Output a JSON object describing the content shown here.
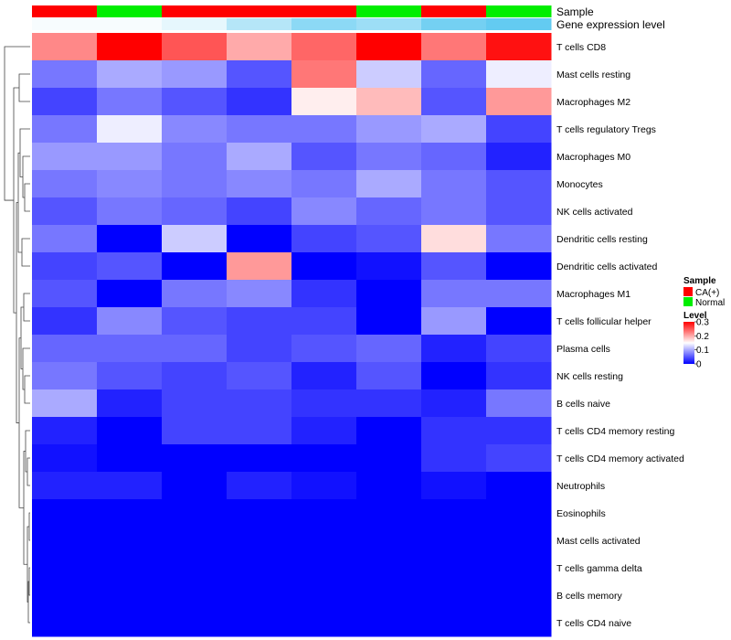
{
  "chart_data": {
    "type": "heatmap",
    "title": "",
    "annotation_rows": [
      "Sample",
      "Gene expression level"
    ],
    "columns": [
      {
        "sample": "CA(+)",
        "expression_level": 0.05
      },
      {
        "sample": "Normal",
        "expression_level": 0.05
      },
      {
        "sample": "CA(+)",
        "expression_level": 0.15
      },
      {
        "sample": "CA(+)",
        "expression_level": 0.45
      },
      {
        "sample": "CA(+)",
        "expression_level": 0.7
      },
      {
        "sample": "Normal",
        "expression_level": 0.6
      },
      {
        "sample": "CA(+)",
        "expression_level": 0.85
      },
      {
        "sample": "Normal",
        "expression_level": 0.95
      }
    ],
    "rows": [
      "T cells CD8",
      "Mast cells resting",
      "Macrophages M2",
      "T cells regulatory  Tregs",
      "Macrophages M0",
      "Monocytes",
      "NK cells activated",
      "Dendritic cells resting",
      "Dendritic cells activated",
      "Macrophages M1",
      "T cells follicular helper",
      "Plasma cells",
      "NK cells resting",
      "B cells naive",
      "T cells CD4 memory resting",
      "T cells CD4 memory activated",
      "Neutrophils",
      "Eosinophils",
      "Mast cells activated",
      "T cells gamma delta",
      "B cells memory",
      "T cells CD4 naive"
    ],
    "values": [
      [
        0.22,
        0.3,
        0.25,
        0.2,
        0.24,
        0.3,
        0.23,
        0.29
      ],
      [
        0.07,
        0.1,
        0.09,
        0.05,
        0.23,
        0.12,
        0.06,
        0.14
      ],
      [
        0.04,
        0.07,
        0.05,
        0.03,
        0.16,
        0.19,
        0.05,
        0.21
      ],
      [
        0.07,
        0.14,
        0.08,
        0.07,
        0.07,
        0.09,
        0.1,
        0.04
      ],
      [
        0.09,
        0.09,
        0.07,
        0.1,
        0.05,
        0.07,
        0.06,
        0.02
      ],
      [
        0.07,
        0.08,
        0.07,
        0.08,
        0.07,
        0.1,
        0.07,
        0.05
      ],
      [
        0.05,
        0.07,
        0.06,
        0.04,
        0.08,
        0.06,
        0.07,
        0.05
      ],
      [
        0.07,
        0.0,
        0.12,
        0.0,
        0.04,
        0.05,
        0.17,
        0.07
      ],
      [
        0.04,
        0.05,
        0.0,
        0.21,
        0.0,
        0.01,
        0.05,
        0.0
      ],
      [
        0.05,
        0.0,
        0.07,
        0.08,
        0.03,
        0.0,
        0.07,
        0.07
      ],
      [
        0.03,
        0.08,
        0.05,
        0.04,
        0.04,
        0.0,
        0.09,
        0.0
      ],
      [
        0.06,
        0.06,
        0.06,
        0.04,
        0.05,
        0.06,
        0.02,
        0.04
      ],
      [
        0.07,
        0.05,
        0.04,
        0.05,
        0.02,
        0.05,
        0.0,
        0.03
      ],
      [
        0.1,
        0.02,
        0.04,
        0.04,
        0.03,
        0.03,
        0.02,
        0.07
      ],
      [
        0.02,
        0.0,
        0.04,
        0.04,
        0.02,
        0.0,
        0.03,
        0.03
      ],
      [
        0.01,
        0.0,
        0.0,
        0.0,
        0.0,
        0.0,
        0.03,
        0.04
      ],
      [
        0.02,
        0.02,
        0.0,
        0.02,
        0.01,
        0.0,
        0.01,
        0.0
      ],
      [
        0.0,
        0.0,
        0.0,
        0.0,
        0.0,
        0.0,
        0.0,
        0.0
      ],
      [
        0.0,
        0.0,
        0.0,
        0.0,
        0.0,
        0.0,
        0.0,
        0.0
      ],
      [
        0.0,
        0.0,
        0.0,
        0.0,
        0.0,
        0.0,
        0.0,
        0.0
      ],
      [
        0.0,
        0.0,
        0.0,
        0.0,
        0.0,
        0.0,
        0.0,
        0.0
      ],
      [
        0.0,
        0.0,
        0.0,
        0.0,
        0.0,
        0.0,
        0.0,
        0.0
      ]
    ],
    "color_scale": {
      "low": "#0000ff",
      "mid": "#ffffff",
      "high": "#ff0000",
      "min": 0,
      "mid_value": 0.15,
      "max": 0.3
    },
    "legend": {
      "placement": "right",
      "sample_title": "Sample",
      "sample_entries": [
        {
          "label": "CA(+)",
          "color": "#ff0000"
        },
        {
          "label": "Normal",
          "color": "#00ee00"
        }
      ],
      "level_title": "Level",
      "level_ticks": [
        {
          "label": "0.3",
          "value": 0.3
        },
        {
          "label": "0.2",
          "value": 0.2
        },
        {
          "label": "0.1",
          "value": 0.1
        },
        {
          "label": "0",
          "value": 0
        }
      ]
    },
    "expression_scale": {
      "low": "#ffffff",
      "high": "#5bc8f0"
    }
  }
}
